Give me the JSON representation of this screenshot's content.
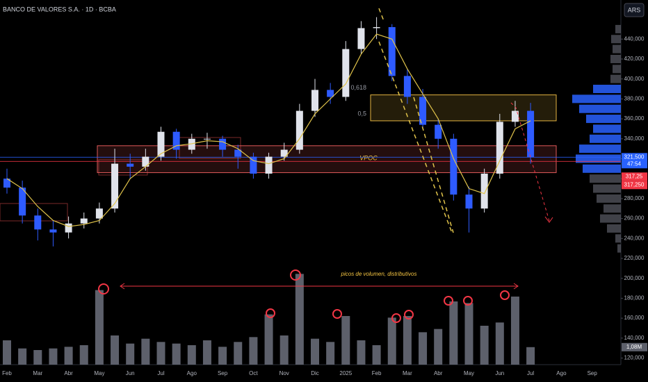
{
  "chart_data": {
    "type": "candlestick",
    "title": "BANCO DE VALORES S.A. · 1D · BCBA",
    "currency": "ARS",
    "categories": [
      "Feb",
      null,
      "Mar",
      null,
      "Abr",
      null,
      "May",
      null,
      "Jun",
      null,
      "Jul",
      null,
      "Ago",
      null,
      "Sep",
      null,
      "Oct",
      null,
      "Nov",
      null,
      "Dic",
      null,
      "2025",
      null,
      "Feb",
      null,
      "Mar",
      null,
      "Abr",
      null,
      "May",
      null,
      "Jun",
      null,
      "Jul",
      null,
      "Ago",
      null,
      "Sep",
      null
    ],
    "open": [
      300000,
      291000,
      263000,
      249000,
      246000,
      255000,
      260000,
      270000,
      315000,
      312000,
      322000,
      347000,
      329000,
      340000,
      340000,
      329000,
      322000,
      305000,
      322000,
      329000,
      368000,
      389000,
      382000,
      430000,
      451000,
      452000,
      403000,
      382000,
      354000,
      340000,
      284000,
      270000,
      305000,
      357000,
      368000,
      null,
      null,
      null,
      null,
      null
    ],
    "high": [
      310000,
      298000,
      270000,
      258000,
      262000,
      266000,
      276000,
      330000,
      325000,
      330000,
      352000,
      350000,
      345000,
      346000,
      343000,
      334000,
      326000,
      326000,
      336000,
      375000,
      400000,
      396000,
      438000,
      458000,
      462000,
      455000,
      410000,
      390000,
      360000,
      345000,
      292000,
      310000,
      365000,
      378000,
      376000,
      null,
      null,
      null,
      null,
      null
    ],
    "low": [
      285000,
      255000,
      238000,
      232000,
      240000,
      250000,
      255000,
      266000,
      300000,
      308000,
      318000,
      320000,
      325000,
      330000,
      322000,
      310000,
      300000,
      300000,
      318000,
      325000,
      362000,
      375000,
      378000,
      425000,
      440000,
      398000,
      375000,
      350000,
      330000,
      278000,
      246000,
      266000,
      300000,
      352000,
      315000,
      null,
      null,
      null,
      null,
      null
    ],
    "close": [
      291000,
      263000,
      249000,
      246000,
      255000,
      260000,
      270000,
      315000,
      312000,
      322000,
      347000,
      329000,
      340000,
      340000,
      329000,
      322000,
      305000,
      322000,
      329000,
      368000,
      389000,
      382000,
      430000,
      451000,
      452000,
      403000,
      382000,
      354000,
      340000,
      284000,
      270000,
      305000,
      357000,
      368000,
      321500,
      null,
      null,
      null,
      null,
      null
    ],
    "up_color": "#e0e3eb",
    "down_color": "#2e5bff",
    "moving_average": {
      "color": "#e0c34a",
      "values": [
        300000,
        290000,
        272000,
        258000,
        252000,
        254000,
        258000,
        275000,
        300000,
        312000,
        325000,
        333000,
        335000,
        338000,
        337000,
        330000,
        318000,
        315000,
        320000,
        340000,
        365000,
        380000,
        395000,
        425000,
        445000,
        440000,
        410000,
        385000,
        360000,
        320000,
        290000,
        285000,
        318000,
        350000,
        358000,
        null,
        null,
        null,
        null,
        null
      ]
    },
    "volume": {
      "color": "#5d606b",
      "ylim": [
        0,
        6
      ],
      "last_label": "1,08M",
      "values": [
        1.5,
        1.0,
        0.9,
        1.0,
        1.1,
        1.2,
        4.6,
        1.8,
        1.3,
        1.6,
        1.4,
        1.3,
        1.2,
        1.5,
        1.1,
        1.4,
        1.7,
        3.1,
        1.8,
        5.6,
        1.6,
        1.4,
        3.0,
        1.5,
        1.2,
        2.9,
        3.0,
        2.0,
        2.2,
        3.9,
        3.8,
        2.4,
        2.6,
        4.2,
        1.08,
        null,
        null,
        null,
        null,
        null
      ]
    },
    "ylim": [
      113400,
      479200
    ],
    "yticks": [
      {
        "value": 120000,
        "label": "120,000"
      },
      {
        "value": 140000,
        "label": "140,000"
      },
      {
        "value": 160000,
        "label": "160,000"
      },
      {
        "value": 180000,
        "label": "180,000"
      },
      {
        "value": 200000,
        "label": "200,000"
      },
      {
        "value": 220000,
        "label": "220,000"
      },
      {
        "value": 240000,
        "label": "240,000"
      },
      {
        "value": 260000,
        "label": "260,000"
      },
      {
        "value": 280000,
        "label": "280,000"
      },
      {
        "value": 300000,
        "label": "300,000"
      },
      {
        "value": 320000,
        "label": "320,000"
      },
      {
        "value": 340000,
        "label": "340,000"
      },
      {
        "value": 360000,
        "label": "360,000"
      },
      {
        "value": 380000,
        "label": "380,000"
      },
      {
        "value": 400000,
        "label": "400,000"
      },
      {
        "value": 420000,
        "label": "420,000"
      },
      {
        "value": 440000,
        "label": "440,000"
      }
    ],
    "zones": [
      {
        "top": 384000,
        "bottom": 358000,
        "color": "#e3b341",
        "labels": [
          "0,618",
          "0,5"
        ]
      },
      {
        "top": 333000,
        "bottom": 306000,
        "color": "#e05a5a",
        "label": "VPOC"
      }
    ],
    "last_price": {
      "value": 321500,
      "label": "321,500",
      "color": "#2962ff",
      "countdown": "47:54"
    },
    "reference_price": {
      "value": 317250,
      "label": "317,250",
      "badge_label": "317,25",
      "color": "#f23645"
    },
    "volume_profile": {
      "levels": [
        230000,
        240000,
        250000,
        260000,
        270000,
        280000,
        290000,
        300000,
        310000,
        320000,
        330000,
        340000,
        350000,
        360000,
        370000,
        380000,
        390000,
        400000,
        410000,
        420000,
        430000,
        440000,
        450000
      ],
      "values": [
        5,
        8,
        20,
        30,
        25,
        35,
        40,
        45,
        55,
        65,
        60,
        45,
        40,
        50,
        60,
        70,
        40,
        15,
        12,
        15,
        12,
        14,
        8
      ],
      "color": "#6a6d78",
      "highlight_color": "#2962ff",
      "highlight_range": [
        305000,
        395000
      ]
    },
    "annotation": "picos de volumen, distributivos"
  }
}
